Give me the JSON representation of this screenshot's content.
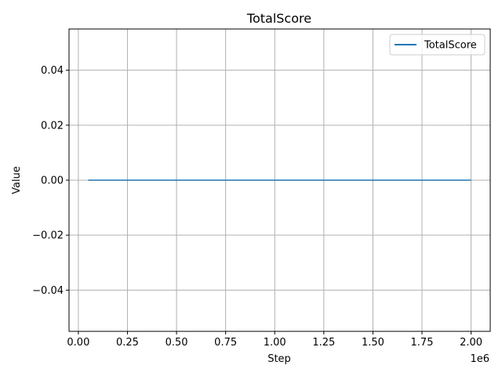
{
  "chart_data": {
    "type": "line",
    "title": "TotalScore",
    "xlabel": "Step",
    "ylabel": "Value",
    "x_offset_label": "1e6",
    "x_scale": 1000000,
    "xlim": [
      -0.0475,
      2.0975
    ],
    "ylim": [
      -0.055,
      0.055
    ],
    "x_ticks": [
      0.0,
      0.25,
      0.5,
      0.75,
      1.0,
      1.25,
      1.5,
      1.75,
      2.0
    ],
    "x_tick_labels": [
      "0.00",
      "0.25",
      "0.50",
      "0.75",
      "1.00",
      "1.25",
      "1.50",
      "1.75",
      "2.00"
    ],
    "y_ticks": [
      -0.04,
      -0.02,
      0.0,
      0.02,
      0.04
    ],
    "y_tick_labels": [
      "−0.04",
      "−0.02",
      "0.00",
      "0.02",
      "0.04"
    ],
    "grid": true,
    "legend_position": "top-right",
    "series": [
      {
        "name": "TotalScore",
        "color": "#1f77b4",
        "x": [
          0.05,
          0.25,
          0.5,
          0.75,
          1.0,
          1.25,
          1.5,
          1.75,
          2.0
        ],
        "y": [
          0,
          0,
          0,
          0,
          0,
          0,
          0,
          0,
          0
        ]
      }
    ]
  }
}
